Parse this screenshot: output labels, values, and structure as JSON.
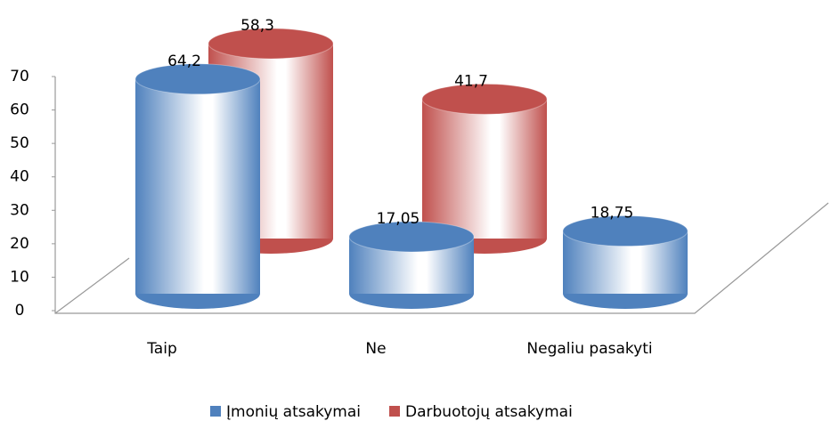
{
  "chart_data": {
    "type": "cylinder3d",
    "categories": [
      "Taip",
      "Ne",
      "Negaliu pasakyti"
    ],
    "series": [
      {
        "name": "Įmonių atsakymai",
        "color": "#4f81bd",
        "values": [
          64.2,
          17.05,
          18.75
        ],
        "value_labels": [
          "64,2",
          "17,05",
          "18,75"
        ]
      },
      {
        "name": "Darbuotojų atsakymai",
        "color": "#c0504d",
        "values": [
          58.3,
          41.7,
          null
        ],
        "value_labels": [
          "58,3",
          "41,7",
          null
        ]
      }
    ],
    "ylim": [
      0,
      70
    ],
    "yticks": [
      0,
      10,
      20,
      30,
      40,
      50,
      60,
      70
    ],
    "legend": "bottom"
  }
}
